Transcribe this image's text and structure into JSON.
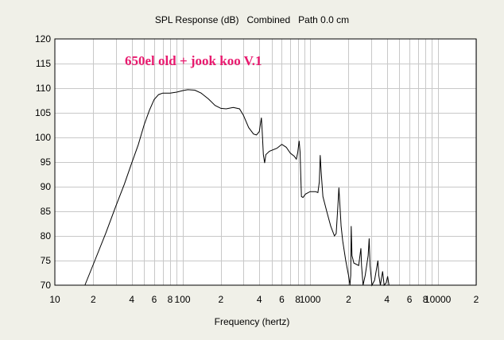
{
  "chart_data": {
    "type": "line",
    "title": "SPL Response (dB)   Combined   Path 0.0 cm",
    "annotation": "650el old + jook koo V.1",
    "xlabel": "Frequency (hertz)",
    "ylabel": "",
    "x_scale": "log",
    "xlim": [
      10,
      20000
    ],
    "ylim": [
      70,
      120
    ],
    "grid": true,
    "x_tick_labels": [
      {
        "value": 10,
        "label": "10"
      },
      {
        "value": 20,
        "label": "2"
      },
      {
        "value": 40,
        "label": "4"
      },
      {
        "value": 60,
        "label": "6"
      },
      {
        "value": 80,
        "label": "8"
      },
      {
        "value": 100,
        "label": "100"
      },
      {
        "value": 200,
        "label": "2"
      },
      {
        "value": 400,
        "label": "4"
      },
      {
        "value": 600,
        "label": "6"
      },
      {
        "value": 800,
        "label": "8"
      },
      {
        "value": 1000,
        "label": "1000"
      },
      {
        "value": 2000,
        "label": "2"
      },
      {
        "value": 4000,
        "label": "4"
      },
      {
        "value": 6000,
        "label": "6"
      },
      {
        "value": 8000,
        "label": "8"
      },
      {
        "value": 10000,
        "label": "10000"
      },
      {
        "value": 20000,
        "label": "2"
      }
    ],
    "y_tick_labels": [
      "70",
      "75",
      "80",
      "85",
      "90",
      "95",
      "100",
      "105",
      "110",
      "115",
      "120"
    ],
    "series": [
      {
        "color": "#000000",
        "points": [
          [
            17.2,
            70.0
          ],
          [
            20,
            74.2
          ],
          [
            25,
            80.5
          ],
          [
            30,
            86.0
          ],
          [
            35,
            90.5
          ],
          [
            40,
            94.8
          ],
          [
            45,
            98.5
          ],
          [
            50,
            102.5
          ],
          [
            55,
            105.5
          ],
          [
            60,
            107.7
          ],
          [
            65,
            108.7
          ],
          [
            70,
            109.0
          ],
          [
            80,
            109.0
          ],
          [
            90,
            109.2
          ],
          [
            100,
            109.5
          ],
          [
            110,
            109.7
          ],
          [
            125,
            109.6
          ],
          [
            140,
            109.0
          ],
          [
            160,
            107.8
          ],
          [
            180,
            106.5
          ],
          [
            200,
            105.9
          ],
          [
            220,
            105.8
          ],
          [
            250,
            106.1
          ],
          [
            280,
            105.8
          ],
          [
            300,
            104.5
          ],
          [
            330,
            102.0
          ],
          [
            360,
            100.7
          ],
          [
            380,
            100.5
          ],
          [
            400,
            101.2
          ],
          [
            415,
            104.0
          ],
          [
            420,
            102.0
          ],
          [
            430,
            96.5
          ],
          [
            440,
            94.8
          ],
          [
            450,
            96.5
          ],
          [
            480,
            97.2
          ],
          [
            550,
            97.8
          ],
          [
            600,
            98.6
          ],
          [
            650,
            98.0
          ],
          [
            700,
            96.8
          ],
          [
            750,
            96.2
          ],
          [
            780,
            95.6
          ],
          [
            800,
            97.0
          ],
          [
            820,
            99.3
          ],
          [
            835,
            97.0
          ],
          [
            845,
            92.0
          ],
          [
            855,
            88.0
          ],
          [
            880,
            87.8
          ],
          [
            920,
            88.5
          ],
          [
            1000,
            89.0
          ],
          [
            1100,
            89.0
          ],
          [
            1150,
            88.8
          ],
          [
            1180,
            91.0
          ],
          [
            1200,
            96.4
          ],
          [
            1220,
            93.0
          ],
          [
            1260,
            88.0
          ],
          [
            1350,
            85.0
          ],
          [
            1450,
            82.0
          ],
          [
            1550,
            80.0
          ],
          [
            1600,
            80.5
          ],
          [
            1650,
            86.0
          ],
          [
            1680,
            89.8
          ],
          [
            1710,
            86.5
          ],
          [
            1750,
            82.0
          ],
          [
            1800,
            79.0
          ],
          [
            1900,
            75.0
          ],
          [
            2000,
            72.0
          ],
          [
            2050,
            70.0
          ],
          [
            2080,
            72.0
          ],
          [
            2100,
            82.0
          ],
          [
            2130,
            76.0
          ],
          [
            2200,
            74.5
          ],
          [
            2400,
            74.0
          ],
          [
            2500,
            77.5
          ],
          [
            2530,
            74.0
          ],
          [
            2600,
            70.0
          ],
          [
            2700,
            72.0
          ],
          [
            2850,
            76.0
          ],
          [
            2900,
            79.5
          ],
          [
            2950,
            74.0
          ],
          [
            3050,
            70.0
          ],
          [
            3200,
            71.0
          ],
          [
            3400,
            75.0
          ],
          [
            3450,
            72.0
          ],
          [
            3550,
            70.0
          ],
          [
            3700,
            72.8
          ],
          [
            3800,
            70.0
          ],
          [
            3950,
            70.5
          ],
          [
            4050,
            71.8
          ],
          [
            4150,
            70.0
          ]
        ]
      }
    ]
  }
}
